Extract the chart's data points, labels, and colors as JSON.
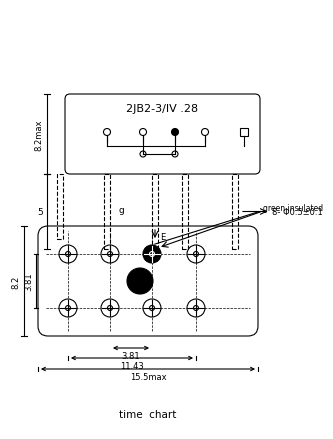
{
  "title_top": "2JB2-3/IV .28",
  "label_8_2max": "8.2max",
  "label_5": "5",
  "label_8_phi": "8- Φ0.5±0.1",
  "label_E": "E",
  "label_g": "g",
  "label_green_insulated": "green insulated",
  "label_8_2_bottom": "8.2",
  "label_3_81_left": "3.81",
  "label_3_81_bottom": "3.81",
  "label_11_43": "11.43",
  "label_15_5max": "15.5max",
  "label_time_chart": "time  chart",
  "bg_color": "#ffffff",
  "line_color": "#000000",
  "text_color": "#000000"
}
